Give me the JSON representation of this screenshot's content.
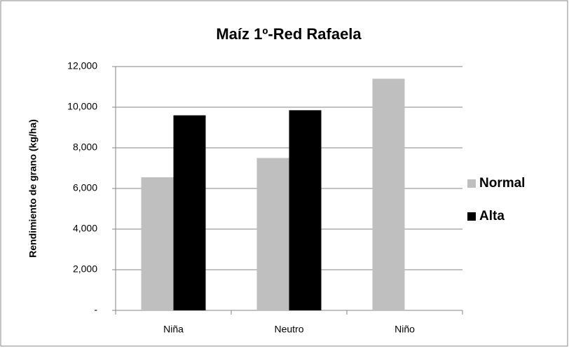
{
  "chart_data": {
    "type": "bar",
    "title": "Maíz 1º-Red Rafaela",
    "y_label": "Rendimiento de grano (kg/ha)",
    "categories": [
      "Niña",
      "Neutro",
      "Niño"
    ],
    "series": [
      {
        "name": "Normal",
        "color": "#bfbfbf",
        "values": [
          6550,
          7500,
          11400
        ]
      },
      {
        "name": "Alta",
        "color": "#000000",
        "values": [
          9600,
          9850,
          null
        ]
      }
    ],
    "ylim": [
      0,
      12000
    ],
    "yticks": [
      {
        "value": 0,
        "label": "-"
      },
      {
        "value": 2000,
        "label": "2,000"
      },
      {
        "value": 4000,
        "label": "4,000"
      },
      {
        "value": 6000,
        "label": "6,000"
      },
      {
        "value": 8000,
        "label": "8,000"
      },
      {
        "value": 10000,
        "label": "10,000"
      },
      {
        "value": 12000,
        "label": "12,000"
      }
    ],
    "grid": true,
    "legend": "right"
  }
}
